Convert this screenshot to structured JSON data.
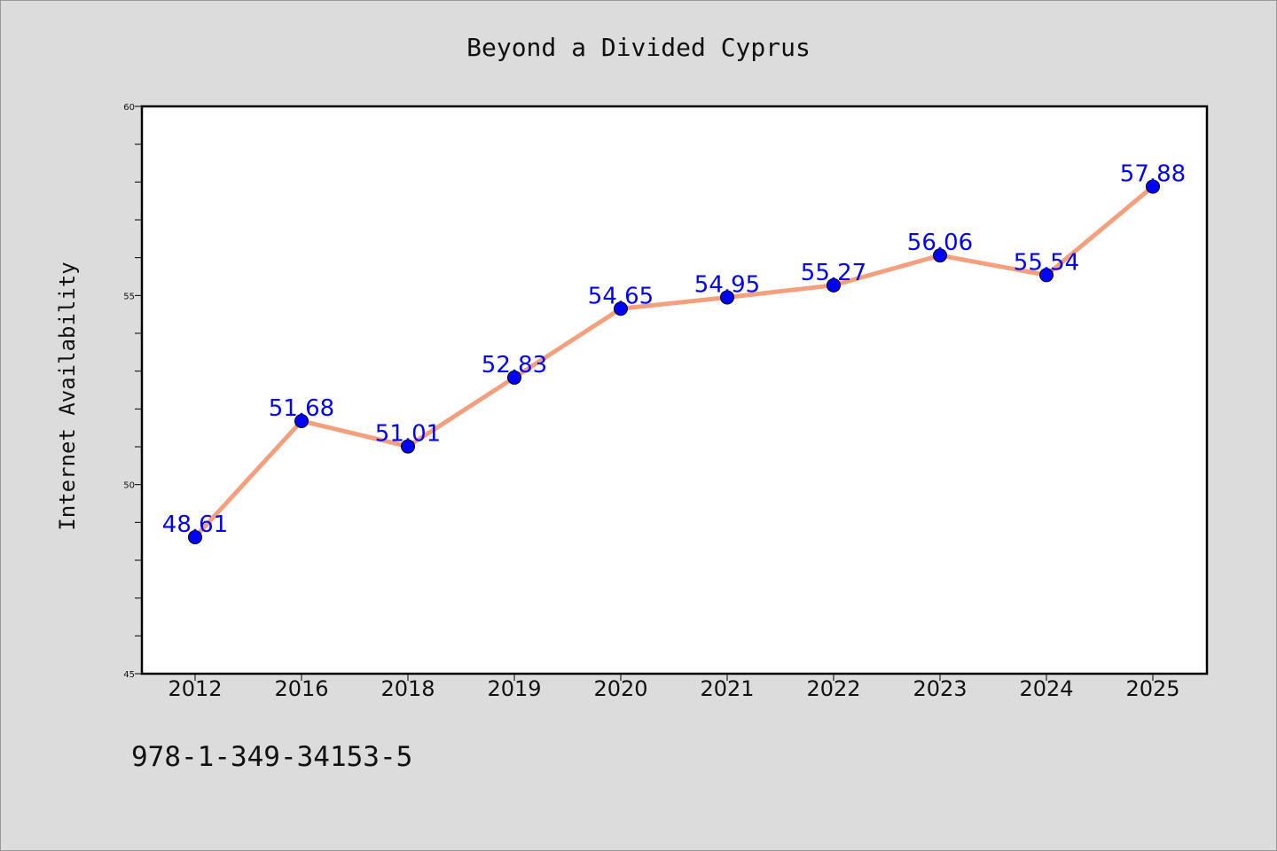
{
  "chart_data": {
    "type": "line",
    "title": "Beyond a Divided Cyprus",
    "xlabel": "",
    "ylabel": "Internet Availability",
    "categories": [
      "2012",
      "2016",
      "2018",
      "2019",
      "2020",
      "2021",
      "2022",
      "2023",
      "2024",
      "2025"
    ],
    "series": [
      {
        "values": [
          48.61,
          51.68,
          51.01,
          52.83,
          54.65,
          54.95,
          55.27,
          56.06,
          55.54,
          57.88
        ],
        "labels": [
          "48.61",
          "51.68",
          "51.01",
          "52.83",
          "54.65",
          "54.95",
          "55.27",
          "56.06",
          "55.54",
          "57.88"
        ]
      }
    ],
    "ylim": [
      45,
      60
    ],
    "yticks": [
      "45",
      "50",
      "55",
      "60"
    ],
    "grid": false,
    "legend": "none",
    "colors": {
      "line": "#f4a07e",
      "marker": "#0000ff",
      "label": "#0000ff",
      "plot_bg": "#ffffff",
      "page_bg": "#dcdcdc"
    }
  },
  "footer": {
    "isbn": "978-1-349-34153-5"
  }
}
